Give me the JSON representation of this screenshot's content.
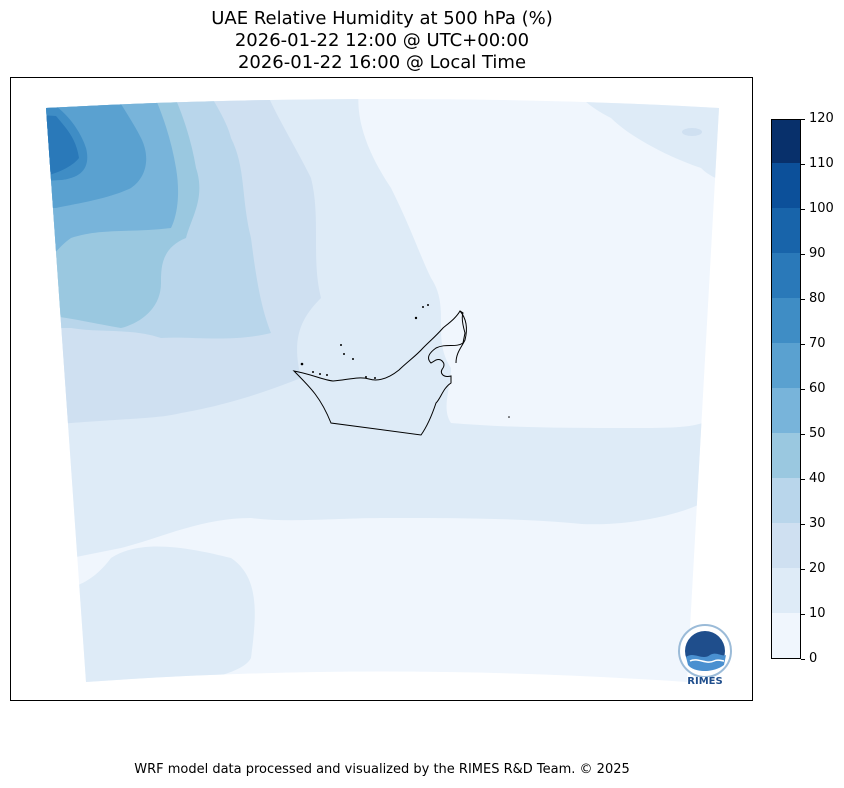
{
  "title": {
    "line1": "UAE Relative Humidity at 500 hPa (%)",
    "line2": "2026-01-22 12:00 @ UTC+00:00",
    "line3": "2026-01-22 16:00 @ Local Time"
  },
  "colorbar": {
    "ticks": [
      "0",
      "10",
      "20",
      "30",
      "40",
      "50",
      "60",
      "70",
      "80",
      "90",
      "100",
      "110",
      "120"
    ],
    "levels": [
      0,
      10,
      20,
      30,
      40,
      50,
      60,
      70,
      80,
      90,
      100,
      110,
      120
    ],
    "colors": [
      "#f0f6fd",
      "#deebf7",
      "#cfe0f1",
      "#b9d6eb",
      "#9ac8e0",
      "#78b4da",
      "#5aa1d0",
      "#3f8dc5",
      "#2a79b9",
      "#1864aa",
      "#0c509a",
      "#08306b"
    ]
  },
  "logo": {
    "text": "RIMES"
  },
  "footer": {
    "text": "WRF model data processed and visualized by the RIMES R&D Team. © 2025"
  }
}
